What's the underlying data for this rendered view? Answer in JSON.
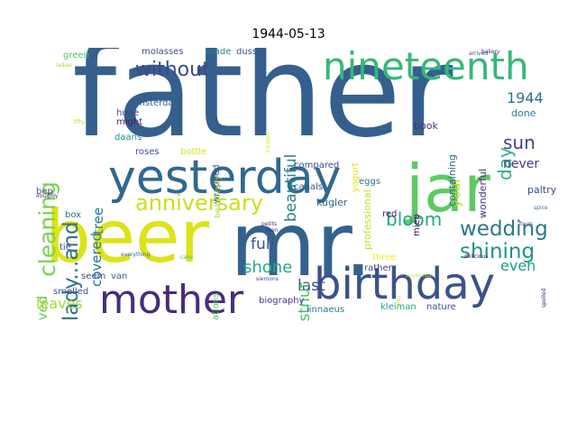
{
  "title": "1944-05-13",
  "words": [
    {
      "text": "father",
      "color": "#355f8d"
    },
    {
      "text": "beer",
      "color": "#dde318"
    },
    {
      "text": "mr.",
      "color": "#33638d"
    },
    {
      "text": "jar",
      "color": "#5ec962"
    },
    {
      "text": "yesterday",
      "color": "#31688e"
    },
    {
      "text": "mother",
      "color": "#472d7b"
    },
    {
      "text": "birthday",
      "color": "#3b528b"
    },
    {
      "text": "nineteenth",
      "color": "#35b779"
    },
    {
      "text": "anniversary",
      "color": "#c8e020"
    },
    {
      "text": "cleaning",
      "color": "#7ad151"
    },
    {
      "text": "lady...and",
      "color": "#2c728e"
    },
    {
      "text": "without",
      "color": "#3e4989"
    },
    {
      "text": "wedding",
      "color": "#2a788e"
    },
    {
      "text": "shining",
      "color": "#21918c"
    },
    {
      "text": "bloom",
      "color": "#22a884"
    },
    {
      "text": "sun",
      "color": "#414487"
    },
    {
      "text": "day",
      "color": "#2db27d"
    },
    {
      "text": "1944",
      "color": "#2c728e"
    },
    {
      "text": "never",
      "color": "#453781"
    },
    {
      "text": "shone",
      "color": "#25ab82"
    },
    {
      "text": "full",
      "color": "#3b528b"
    },
    {
      "text": "last",
      "color": "#404688"
    },
    {
      "text": "even",
      "color": "#1fa188"
    },
    {
      "text": "beautiful",
      "color": "#26828e"
    },
    {
      "text": "chestnut",
      "color": "#4ac16d"
    },
    {
      "text": "covered",
      "color": "#2a768e"
    },
    {
      "text": "tree",
      "color": "#287c8e"
    },
    {
      "text": "received",
      "color": "#6ccd5a"
    },
    {
      "text": "leaves",
      "color": "#a0da39"
    },
    {
      "text": "year",
      "color": "#b5de2b"
    },
    {
      "text": "wonderful",
      "color": "#46307e"
    },
    {
      "text": "paltry",
      "color": "#3e4989"
    },
    {
      "text": "containing",
      "color": "#2f6b8e"
    },
    {
      "text": "book",
      "color": "#46337f"
    },
    {
      "text": "done",
      "color": "#277f8e"
    },
    {
      "text": "professional",
      "color": "#c2df23"
    },
    {
      "text": "yogurt",
      "color": "#e2e418"
    },
    {
      "text": "compared",
      "color": "#3e4a89"
    },
    {
      "text": "eggs",
      "color": "#2a768e"
    },
    {
      "text": "canals",
      "color": "#365c8d"
    },
    {
      "text": "kugler",
      "color": "#31688e"
    },
    {
      "text": "miep",
      "color": "#440154"
    },
    {
      "text": "red",
      "color": "#471365"
    },
    {
      "text": "rather",
      "color": "#433e85"
    },
    {
      "text": "three",
      "color": "#fde725"
    },
    {
      "text": "nature",
      "color": "#3c4f8a"
    },
    {
      "text": "kleiman",
      "color": "#22a785"
    },
    {
      "text": "linnaeus",
      "color": "#2a768e"
    },
    {
      "text": "biography",
      "color": "#453882"
    },
    {
      "text": "carnations",
      "color": "#56c667"
    },
    {
      "text": "wrapped",
      "color": "#3e4989"
    },
    {
      "text": "beautifully",
      "color": "#a2da37"
    },
    {
      "text": "bottle",
      "color": "#d8e219"
    },
    {
      "text": "roses",
      "color": "#3e4a89"
    },
    {
      "text": "daans",
      "color": "#228c8d"
    },
    {
      "text": "might",
      "color": "#481769"
    },
    {
      "text": "huge",
      "color": "#3f4889"
    },
    {
      "text": "amsterdam",
      "color": "#355f8d"
    },
    {
      "text": "molasses",
      "color": "#3e4c8a"
    },
    {
      "text": "made",
      "color": "#24868e"
    },
    {
      "text": "dussel",
      "color": "#3b528b"
    },
    {
      "text": "green",
      "color": "#4ac16d"
    },
    {
      "text": "bep",
      "color": "#3b528b"
    },
    {
      "text": "box",
      "color": "#2c728e"
    },
    {
      "text": "tie",
      "color": "#404688"
    },
    {
      "text": "seem",
      "color": "#3d4d8a"
    },
    {
      "text": "van",
      "color": "#34608d"
    },
    {
      "text": "smelled",
      "color": "#3a548c"
    },
    {
      "text": "everything",
      "color": "#2d708e"
    },
    {
      "text": "cake",
      "color": "#4ac16d"
    },
    {
      "text": "petits",
      "color": "#46307e"
    },
    {
      "text": "men",
      "color": "#472a7a"
    },
    {
      "text": "siemons",
      "color": "#3e4989"
    },
    {
      "text": "also",
      "color": "#bddf26"
    },
    {
      "text": "delicious",
      "color": "#482173"
    },
    {
      "text": "scrumptious",
      "color": "#bddf26"
    },
    {
      "text": "fours",
      "color": "#3d4e8a"
    },
    {
      "text": "spice",
      "color": "#2a778e"
    },
    {
      "text": "spoiled",
      "color": "#481b6d"
    },
    {
      "text": "bakery",
      "color": "#472c7a"
    },
    {
      "text": "arrived",
      "color": "#3f4788"
    },
    {
      "text": "ladies",
      "color": "#a8db34"
    },
    {
      "text": "fifty",
      "color": "#c0df25"
    },
    {
      "text": "treated",
      "color": "#e5e419"
    },
    {
      "text": "thoroughly",
      "color": "#481a6c"
    }
  ]
}
